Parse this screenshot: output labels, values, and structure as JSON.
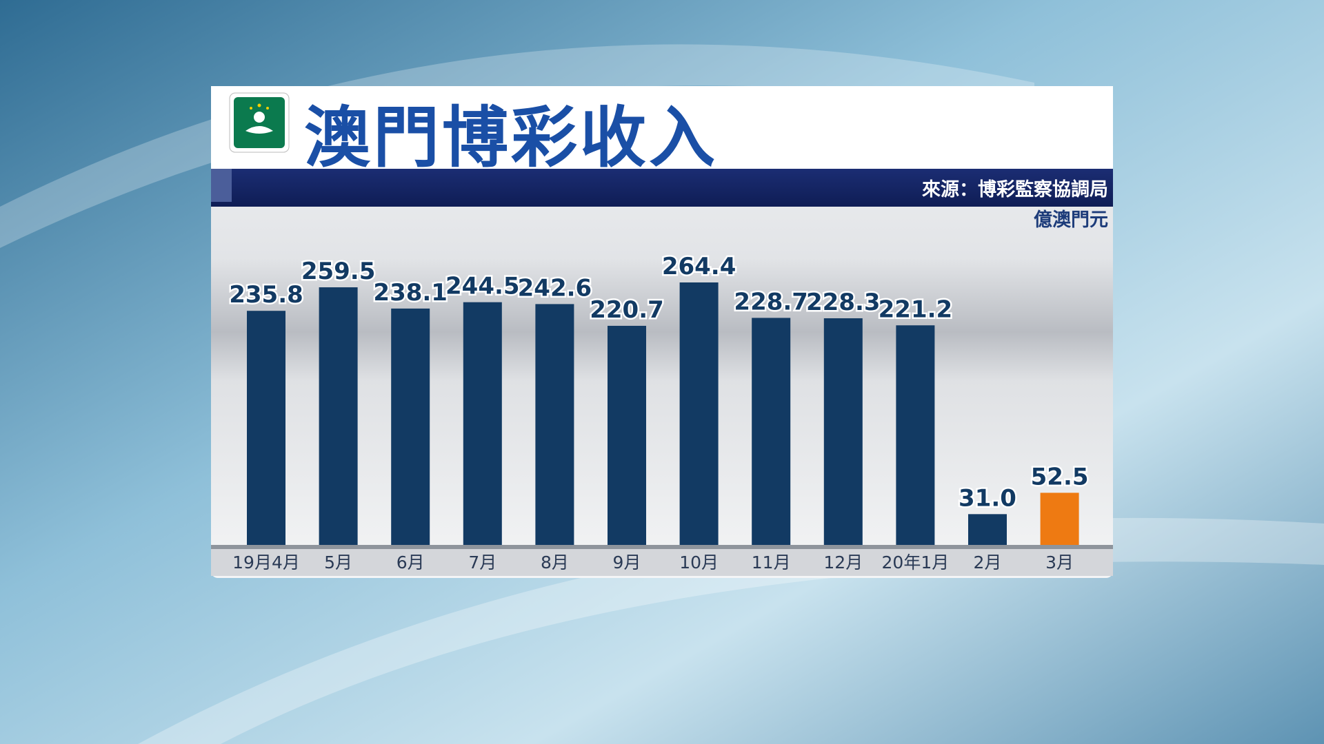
{
  "chart_data": {
    "type": "bar",
    "title": "澳門博彩收入",
    "source": "來源：博彩監察協調局",
    "unit": "億澳門元",
    "categories": [
      "19月4月",
      "5月",
      "6月",
      "7月",
      "8月",
      "9月",
      "10月",
      "11月",
      "12月",
      "20年1月",
      "2月",
      "3月"
    ],
    "values": [
      235.8,
      259.5,
      238.1,
      244.5,
      242.6,
      220.7,
      264.4,
      228.7,
      228.3,
      221.2,
      31.0,
      52.5
    ],
    "value_labels": [
      "235.8",
      "259.5",
      "238.1",
      "244.5",
      "242.6",
      "220.7",
      "264.4",
      "228.7",
      "228.3",
      "221.2",
      "31.0",
      "52.5"
    ],
    "colors": [
      "#123a63",
      "#123a63",
      "#123a63",
      "#123a63",
      "#123a63",
      "#123a63",
      "#123a63",
      "#123a63",
      "#123a63",
      "#123a63",
      "#123a63",
      "#ee7a12"
    ]
  }
}
